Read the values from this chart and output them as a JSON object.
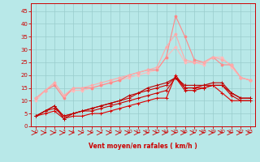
{
  "x": [
    0,
    1,
    2,
    3,
    4,
    5,
    6,
    7,
    8,
    9,
    10,
    11,
    12,
    13,
    14,
    15,
    16,
    17,
    18,
    19,
    20,
    21,
    22,
    23
  ],
  "lines": [
    {
      "y": [
        4,
        5,
        6,
        3,
        4,
        4,
        5,
        5,
        6,
        7,
        8,
        9,
        10,
        11,
        11,
        20,
        15,
        15,
        15,
        16,
        13,
        10,
        10,
        10
      ],
      "color": "#dd0000",
      "lw": 0.8,
      "marker": "+",
      "ms": 3.0,
      "zorder": 5
    },
    {
      "y": [
        4,
        6,
        7,
        4,
        5,
        6,
        6,
        7,
        8,
        9,
        10,
        11,
        12,
        13,
        14,
        19,
        14,
        14,
        15,
        16,
        16,
        12,
        10,
        10
      ],
      "color": "#cc0000",
      "lw": 0.8,
      "marker": "+",
      "ms": 3.0,
      "zorder": 5
    },
    {
      "y": [
        4,
        6,
        8,
        4,
        5,
        6,
        7,
        8,
        9,
        10,
        11,
        13,
        14,
        15,
        16,
        19,
        15,
        15,
        16,
        16,
        16,
        13,
        11,
        11
      ],
      "color": "#cc0000",
      "lw": 0.8,
      "marker": "+",
      "ms": 3.0,
      "zorder": 5
    },
    {
      "y": [
        4,
        6,
        8,
        3,
        5,
        6,
        7,
        8,
        9,
        10,
        12,
        13,
        15,
        16,
        17,
        19,
        16,
        16,
        16,
        17,
        17,
        13,
        11,
        11
      ],
      "color": "#bb0000",
      "lw": 0.8,
      "marker": "+",
      "ms": 3.0,
      "zorder": 5
    },
    {
      "y": [
        10,
        14,
        17,
        12,
        14,
        14,
        15,
        16,
        17,
        18,
        19,
        20,
        21,
        22,
        27,
        31,
        25,
        25,
        24,
        27,
        27,
        23,
        19,
        18
      ],
      "color": "#ffbbbb",
      "lw": 0.8,
      "marker": "o",
      "ms": 2.0,
      "zorder": 4
    },
    {
      "y": [
        11,
        14,
        16,
        11,
        15,
        15,
        15,
        16,
        17,
        18,
        20,
        21,
        22,
        22,
        27,
        43,
        35,
        26,
        25,
        27,
        24,
        24,
        19,
        18
      ],
      "color": "#ff8888",
      "lw": 0.8,
      "marker": "o",
      "ms": 2.0,
      "zorder": 4
    },
    {
      "y": [
        11,
        14,
        17,
        12,
        15,
        15,
        16,
        17,
        18,
        19,
        20,
        21,
        22,
        23,
        31,
        36,
        26,
        25,
        25,
        27,
        26,
        24,
        19,
        18
      ],
      "color": "#ffaaaa",
      "lw": 0.8,
      "marker": "o",
      "ms": 2.0,
      "zorder": 4
    }
  ],
  "bg_color": "#b8e8e8",
  "grid_color": "#99cccc",
  "xlabel": "Vent moyen/en rafales ( km/h )",
  "yticks": [
    0,
    5,
    10,
    15,
    20,
    25,
    30,
    35,
    40,
    45
  ],
  "xlim": [
    -0.5,
    23.5
  ],
  "ylim": [
    0,
    48
  ],
  "arrow_color": "#cc0000",
  "axis_color": "#cc0000",
  "tick_color": "#cc0000",
  "label_color": "#cc0000"
}
